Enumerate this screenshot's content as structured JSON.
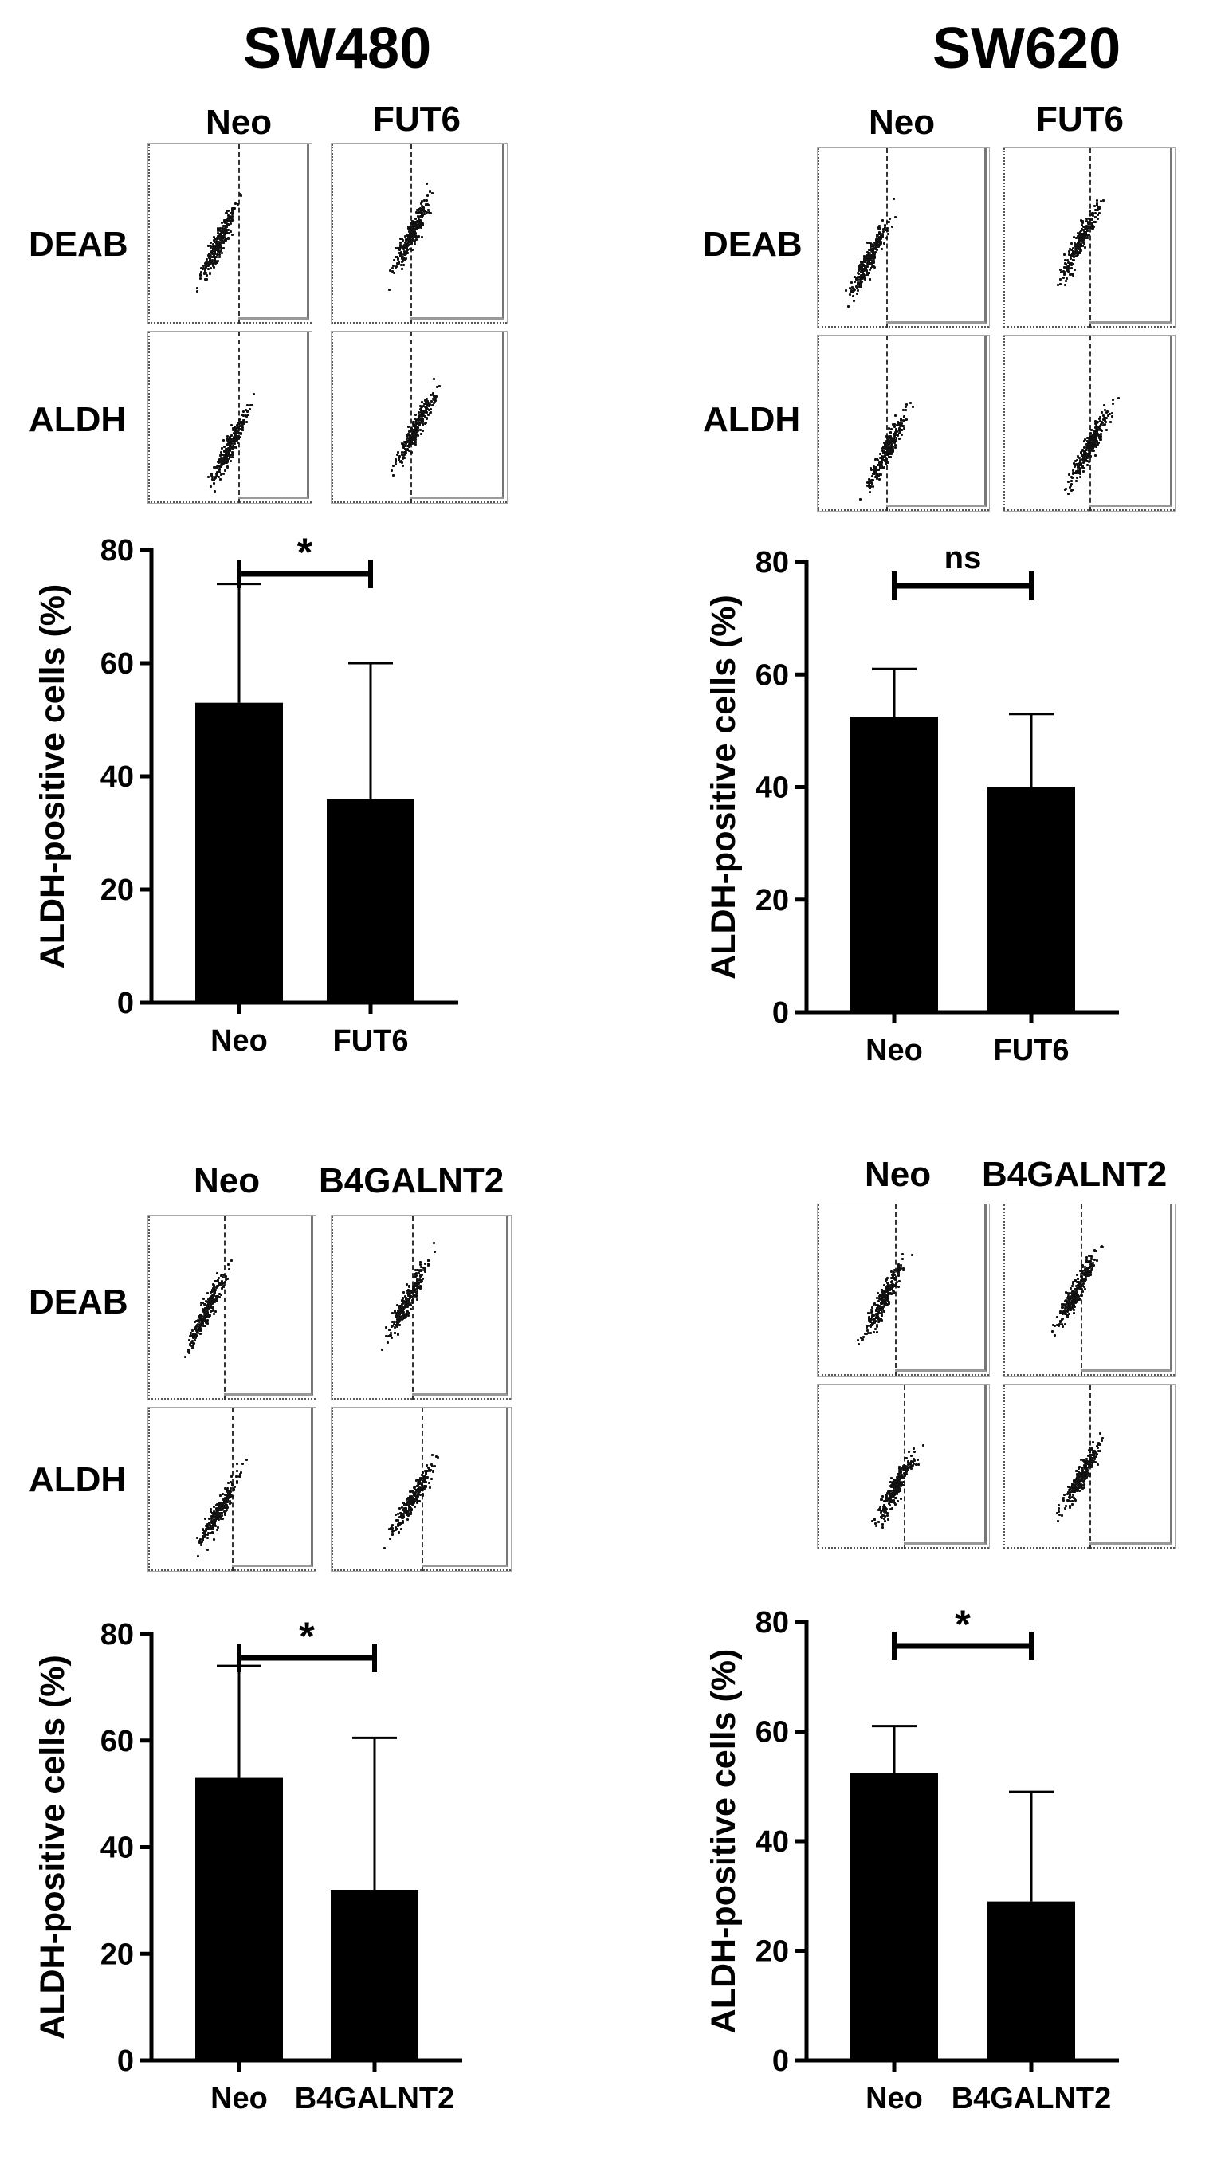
{
  "titles": {
    "left": "SW480",
    "right": "SW620"
  },
  "flow_labels": {
    "neo": "Neo",
    "fut6": "FUT6",
    "b4": "B4GALNT2",
    "deab": "DEAB",
    "aldh": "ALDH"
  },
  "chart_data": [
    {
      "type": "bar",
      "panel": "SW480 FUT6",
      "categories": [
        "Neo",
        "FUT6"
      ],
      "values": [
        53,
        36
      ],
      "error_plus": [
        21,
        24
      ],
      "ylabel": "ALDH-positive cells (%)",
      "ylim": [
        0,
        80
      ],
      "yticks": [
        "0",
        "20",
        "40",
        "60",
        "80"
      ],
      "significance": "*",
      "grid": false
    },
    {
      "type": "bar",
      "panel": "SW620 FUT6",
      "categories": [
        "Neo",
        "FUT6"
      ],
      "values": [
        52.5,
        40
      ],
      "error_plus": [
        8.5,
        13
      ],
      "ylabel": "ALDH-positive cells (%)",
      "ylim": [
        0,
        80
      ],
      "yticks": [
        "0",
        "20",
        "40",
        "60",
        "80"
      ],
      "significance": "ns",
      "grid": false
    },
    {
      "type": "bar",
      "panel": "SW480 B4GALNT2",
      "categories": [
        "Neo",
        "B4GALNT2"
      ],
      "values": [
        53,
        32
      ],
      "error_plus": [
        21,
        28.5
      ],
      "ylabel": "ALDH-positive cells (%)",
      "ylim": [
        0,
        80
      ],
      "yticks": [
        "0",
        "20",
        "40",
        "60",
        "80"
      ],
      "significance": "*",
      "grid": false
    },
    {
      "type": "bar",
      "panel": "SW620 B4GALNT2",
      "categories": [
        "Neo",
        "B4GALNT2"
      ],
      "values": [
        52.5,
        29
      ],
      "error_plus": [
        8.5,
        20
      ],
      "ylabel": "ALDH-positive cells (%)",
      "ylim": [
        0,
        80
      ],
      "yticks": [
        "0",
        "20",
        "40",
        "60",
        "80"
      ],
      "significance": "*",
      "grid": false
    }
  ]
}
